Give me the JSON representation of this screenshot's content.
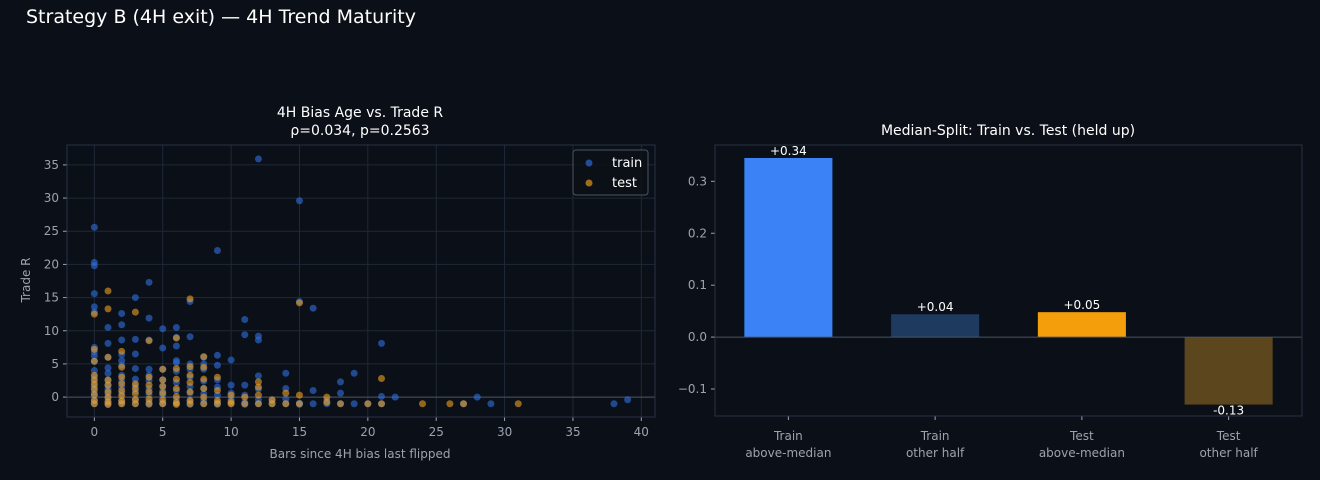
{
  "figure": {
    "title": "Strategy B (4H exit) — 4H Trend Maturity"
  },
  "colors": {
    "background": "#0b0f17",
    "grid": "#1f2937",
    "axis_text": "#9ca3af",
    "title_text": "#ffffff",
    "train": "#2f6fe0",
    "test": "#f0a020",
    "bar_train_above": "#3b82f6",
    "bar_train_other": "#1e3a5f",
    "bar_test_above": "#f59e0b",
    "bar_test_other": "#5c461e"
  },
  "chart_data": [
    {
      "type": "scatter",
      "title_line1": "4H Bias Age vs. Trade R",
      "title_line2": "ρ=0.034, p=0.2563",
      "xlabel": "Bars since 4H bias last flipped",
      "ylabel": "Trade R",
      "xlim": [
        -2,
        41
      ],
      "ylim": [
        -3,
        38
      ],
      "xticks": [
        0,
        5,
        10,
        15,
        20,
        25,
        30,
        35,
        40
      ],
      "yticks": [
        0,
        5,
        10,
        15,
        20,
        25,
        30,
        35
      ],
      "grid": true,
      "legend_position": "top-right",
      "series": [
        {
          "name": "train",
          "color": "#2f6fe0",
          "points": [
            [
              0,
              25.6
            ],
            [
              0,
              20.3
            ],
            [
              0,
              19.8
            ],
            [
              0,
              15.6
            ],
            [
              0,
              13.6
            ],
            [
              0,
              12.8
            ],
            [
              0,
              7.5
            ],
            [
              0,
              6.8
            ],
            [
              0,
              6.2
            ],
            [
              0,
              5.4
            ],
            [
              0,
              4.0
            ],
            [
              0,
              3.0
            ],
            [
              0,
              2.2
            ],
            [
              0,
              1.5
            ],
            [
              0,
              0.8
            ],
            [
              0,
              0.2
            ],
            [
              0,
              -0.5
            ],
            [
              0,
              -1.0
            ],
            [
              1,
              10.5
            ],
            [
              1,
              8.1
            ],
            [
              1,
              6.0
            ],
            [
              1,
              4.4
            ],
            [
              1,
              3.6
            ],
            [
              1,
              2.5
            ],
            [
              1,
              1.8
            ],
            [
              1,
              1.2
            ],
            [
              1,
              0.5
            ],
            [
              1,
              -0.2
            ],
            [
              1,
              -0.8
            ],
            [
              1,
              -1.1
            ],
            [
              2,
              12.6
            ],
            [
              2,
              10.9
            ],
            [
              2,
              8.6
            ],
            [
              2,
              6.4
            ],
            [
              2,
              5.5
            ],
            [
              2,
              4.8
            ],
            [
              2,
              3.3
            ],
            [
              2,
              2.4
            ],
            [
              2,
              1.5
            ],
            [
              2,
              0.6
            ],
            [
              2,
              -0.5
            ],
            [
              2,
              -1.0
            ],
            [
              3,
              15.0
            ],
            [
              3,
              8.7
            ],
            [
              3,
              6.5
            ],
            [
              3,
              4.3
            ],
            [
              3,
              2.7
            ],
            [
              3,
              1.7
            ],
            [
              3,
              0.9
            ],
            [
              3,
              -0.4
            ],
            [
              3,
              -1.0
            ],
            [
              4,
              17.3
            ],
            [
              4,
              11.9
            ],
            [
              4,
              8.6
            ],
            [
              4,
              4.2
            ],
            [
              4,
              3.3
            ],
            [
              4,
              2.5
            ],
            [
              4,
              1.3
            ],
            [
              4,
              0.4
            ],
            [
              4,
              -0.7
            ],
            [
              4,
              -1.1
            ],
            [
              5,
              10.3
            ],
            [
              5,
              7.4
            ],
            [
              5,
              4.2
            ],
            [
              5,
              2.6
            ],
            [
              5,
              1.7
            ],
            [
              5,
              0.9
            ],
            [
              5,
              0.3
            ],
            [
              5,
              -0.8
            ],
            [
              5,
              -1.0
            ],
            [
              6,
              10.5
            ],
            [
              6,
              9.0
            ],
            [
              6,
              7.7
            ],
            [
              6,
              5.5
            ],
            [
              6,
              5.2
            ],
            [
              6,
              3.9
            ],
            [
              6,
              2.2
            ],
            [
              6,
              1.0
            ],
            [
              6,
              -0.3
            ],
            [
              6,
              -1.0
            ],
            [
              7,
              14.4
            ],
            [
              7,
              9.1
            ],
            [
              7,
              5.0
            ],
            [
              7,
              4.2
            ],
            [
              7,
              3.0
            ],
            [
              7,
              1.6
            ],
            [
              7,
              0.6
            ],
            [
              7,
              -0.6
            ],
            [
              7,
              -1.1
            ],
            [
              8,
              6.0
            ],
            [
              8,
              5.0
            ],
            [
              8,
              4.2
            ],
            [
              8,
              2.4
            ],
            [
              8,
              1.3
            ],
            [
              8,
              0.5
            ],
            [
              8,
              -0.5
            ],
            [
              8,
              -1.0
            ],
            [
              9,
              22.1
            ],
            [
              9,
              6.3
            ],
            [
              9,
              4.8
            ],
            [
              9,
              2.6
            ],
            [
              9,
              1.5
            ],
            [
              9,
              0.3
            ],
            [
              9,
              -0.8
            ],
            [
              9,
              -1.1
            ],
            [
              10,
              5.6
            ],
            [
              10,
              1.8
            ],
            [
              10,
              0.6
            ],
            [
              10,
              -0.3
            ],
            [
              10,
              -1.0
            ],
            [
              11,
              11.7
            ],
            [
              11,
              9.4
            ],
            [
              11,
              1.8
            ],
            [
              11,
              0.3
            ],
            [
              11,
              -0.8
            ],
            [
              11,
              -1.1
            ],
            [
              12,
              35.9
            ],
            [
              12,
              9.2
            ],
            [
              12,
              8.6
            ],
            [
              12,
              3.2
            ],
            [
              12,
              1.2
            ],
            [
              12,
              -0.4
            ],
            [
              12,
              -1.0
            ],
            [
              13,
              -0.5
            ],
            [
              13,
              -1.0
            ],
            [
              14,
              3.6
            ],
            [
              14,
              1.3
            ],
            [
              14,
              -0.3
            ],
            [
              14,
              -1.0
            ],
            [
              15,
              29.6
            ],
            [
              15,
              14.4
            ],
            [
              15,
              -0.9
            ],
            [
              15,
              -1.1
            ],
            [
              16,
              13.4
            ],
            [
              16,
              1.0
            ],
            [
              16,
              -1.0
            ],
            [
              17,
              -0.5
            ],
            [
              17,
              -1.0
            ],
            [
              18,
              2.3
            ],
            [
              18,
              0.6
            ],
            [
              18,
              -1.0
            ],
            [
              19,
              3.6
            ],
            [
              19,
              -1.0
            ],
            [
              20,
              -1.0
            ],
            [
              21,
              8.1
            ],
            [
              21,
              0.1
            ],
            [
              21,
              -1.0
            ],
            [
              22,
              0.0
            ],
            [
              27,
              -1.0
            ],
            [
              28,
              0.0
            ],
            [
              29,
              -1.0
            ],
            [
              38,
              -1.0
            ],
            [
              39,
              -0.4
            ]
          ]
        },
        {
          "name": "test",
          "color": "#f0a020",
          "points": [
            [
              0,
              12.5
            ],
            [
              0,
              7.2
            ],
            [
              0,
              5.4
            ],
            [
              0,
              3.3
            ],
            [
              0,
              2.6
            ],
            [
              0,
              1.9
            ],
            [
              0,
              1.2
            ],
            [
              0,
              0.4
            ],
            [
              0,
              -0.5
            ],
            [
              0,
              -1.0
            ],
            [
              1,
              16.0
            ],
            [
              1,
              13.3
            ],
            [
              1,
              6.0
            ],
            [
              1,
              2.6
            ],
            [
              1,
              1.8
            ],
            [
              1,
              0.8
            ],
            [
              1,
              0.0
            ],
            [
              1,
              -0.7
            ],
            [
              1,
              -1.1
            ],
            [
              2,
              6.9
            ],
            [
              2,
              4.5
            ],
            [
              2,
              3.0
            ],
            [
              2,
              2.0
            ],
            [
              2,
              1.0
            ],
            [
              2,
              0.2
            ],
            [
              2,
              -0.6
            ],
            [
              2,
              -1.0
            ],
            [
              3,
              12.8
            ],
            [
              3,
              2.0
            ],
            [
              3,
              1.3
            ],
            [
              3,
              0.5
            ],
            [
              3,
              -0.4
            ],
            [
              3,
              -1.0
            ],
            [
              4,
              8.5
            ],
            [
              4,
              3.0
            ],
            [
              4,
              1.8
            ],
            [
              4,
              0.8
            ],
            [
              4,
              -0.3
            ],
            [
              4,
              -1.0
            ],
            [
              5,
              4.2
            ],
            [
              5,
              2.6
            ],
            [
              5,
              1.6
            ],
            [
              5,
              0.6
            ],
            [
              5,
              -0.4
            ],
            [
              5,
              -1.0
            ],
            [
              6,
              8.9
            ],
            [
              6,
              4.3
            ],
            [
              6,
              2.7
            ],
            [
              6,
              1.3
            ],
            [
              6,
              0.1
            ],
            [
              6,
              -0.8
            ],
            [
              6,
              -1.1
            ],
            [
              7,
              14.8
            ],
            [
              7,
              4.6
            ],
            [
              7,
              3.3
            ],
            [
              7,
              2.2
            ],
            [
              7,
              0.8
            ],
            [
              7,
              -0.5
            ],
            [
              7,
              -1.0
            ],
            [
              8,
              6.1
            ],
            [
              8,
              4.5
            ],
            [
              8,
              2.7
            ],
            [
              8,
              1.3
            ],
            [
              8,
              0.0
            ],
            [
              8,
              -1.0
            ],
            [
              9,
              3.0
            ],
            [
              9,
              1.0
            ],
            [
              9,
              -0.5
            ],
            [
              9,
              -1.0
            ],
            [
              10,
              0.3
            ],
            [
              10,
              -0.7
            ],
            [
              10,
              -1.0
            ],
            [
              11,
              0.0
            ],
            [
              11,
              -1.0
            ],
            [
              12,
              2.3
            ],
            [
              12,
              1.5
            ],
            [
              12,
              0.3
            ],
            [
              12,
              -1.0
            ],
            [
              13,
              -0.4
            ],
            [
              13,
              -1.0
            ],
            [
              14,
              0.6
            ],
            [
              14,
              -1.0
            ],
            [
              15,
              14.2
            ],
            [
              15,
              0.3
            ],
            [
              15,
              -1.0
            ],
            [
              17,
              0.0
            ],
            [
              17,
              -0.8
            ],
            [
              18,
              -1.0
            ],
            [
              20,
              -1.0
            ],
            [
              21,
              2.8
            ],
            [
              21,
              -1.0
            ],
            [
              24,
              -1.0
            ],
            [
              26,
              -1.0
            ],
            [
              27,
              -1.0
            ],
            [
              31,
              -1.0
            ]
          ]
        }
      ]
    },
    {
      "type": "bar",
      "title": "Median-Split: Train vs. Test (held up)",
      "categories": [
        [
          "Train",
          "above-median"
        ],
        [
          "Train",
          "other half"
        ],
        [
          "Test",
          "above-median"
        ],
        [
          "Test",
          "other half"
        ]
      ],
      "values": [
        0.345,
        0.044,
        0.048,
        -0.13
      ],
      "labels": [
        "+0.34",
        "+0.04",
        "+0.05",
        "-0.13"
      ],
      "colors": [
        "#3b82f6",
        "#1e3a5f",
        "#f59e0b",
        "#5c461e"
      ],
      "ylim": [
        -0.152,
        0.37
      ],
      "yticks": [
        -0.1,
        0.0,
        0.1,
        0.2,
        0.3
      ],
      "ytick_labels": [
        "−0.1",
        "0.0",
        "0.1",
        "0.2",
        "0.3"
      ],
      "grid": false
    }
  ]
}
